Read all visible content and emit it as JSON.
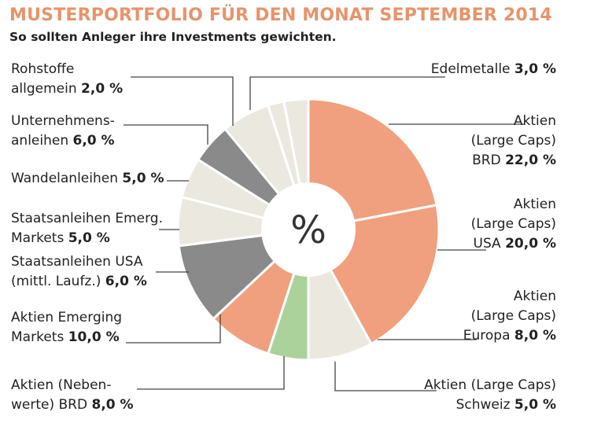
{
  "title": "MUSTERPORTFOLIO FÜR DEN MONAT SEPTEMBER 2014",
  "subtitle": "So sollten Anleger ihre Investments gewichten.",
  "center_label": "%",
  "colors": {
    "title": "#e8936a",
    "salmon": "#f0a07e",
    "gray": "#8a8a8a",
    "beige": "#ebe8e0",
    "green": "#acd29b",
    "leader": "#444444"
  },
  "chart_data": {
    "type": "pie",
    "title": "MUSTERPORTFOLIO FÜR DEN MONAT SEPTEMBER 2014",
    "subtitle": "So sollten Anleger ihre Investments gewichten.",
    "slices": [
      {
        "label_lines": [
          "Aktien",
          "(Large Caps)",
          "BRD"
        ],
        "value": 22.0,
        "value_text": "22,0 %",
        "color": "salmon"
      },
      {
        "label_lines": [
          "Aktien",
          "(Large Caps)",
          "USA"
        ],
        "value": 20.0,
        "value_text": "20,0 %",
        "color": "salmon"
      },
      {
        "label_lines": [
          "Aktien",
          "(Large Caps)",
          "Europa"
        ],
        "value": 8.0,
        "value_text": "8,0 %",
        "color": "beige"
      },
      {
        "label_lines": [
          "Aktien (Large Caps)",
          "Schweiz"
        ],
        "value": 5.0,
        "value_text": "5,0 %",
        "color": "green"
      },
      {
        "label_lines": [
          "Aktien (Neben-",
          "werte) BRD"
        ],
        "value": 8.0,
        "value_text": "8,0 %",
        "color": "salmon"
      },
      {
        "label_lines": [
          "Aktien Emerging",
          "Markets"
        ],
        "value": 10.0,
        "value_text": "10,0 %",
        "color": "gray"
      },
      {
        "label_lines": [
          "Staatsanleihen USA",
          "(mittl. Laufz.)"
        ],
        "value": 6.0,
        "value_text": "6,0 %",
        "color": "beige"
      },
      {
        "label_lines": [
          "Staatsanleihen Emerg.",
          "Markets"
        ],
        "value": 5.0,
        "value_text": "5,0 %",
        "color": "beige"
      },
      {
        "label_lines": [
          "Wandelanleihen"
        ],
        "value": 5.0,
        "value_text": "5,0 %",
        "color": "gray"
      },
      {
        "label_lines": [
          "Unternehmens-",
          "anleihen"
        ],
        "value": 6.0,
        "value_text": "6,0 %",
        "color": "beige"
      },
      {
        "label_lines": [
          "Rohstoffe",
          "allgemein"
        ],
        "value": 2.0,
        "value_text": "2,0 %",
        "color": "beige"
      },
      {
        "label_lines": [
          "Edelmetalle"
        ],
        "value": 3.0,
        "value_text": "3,0 %",
        "color": "beige"
      }
    ]
  }
}
